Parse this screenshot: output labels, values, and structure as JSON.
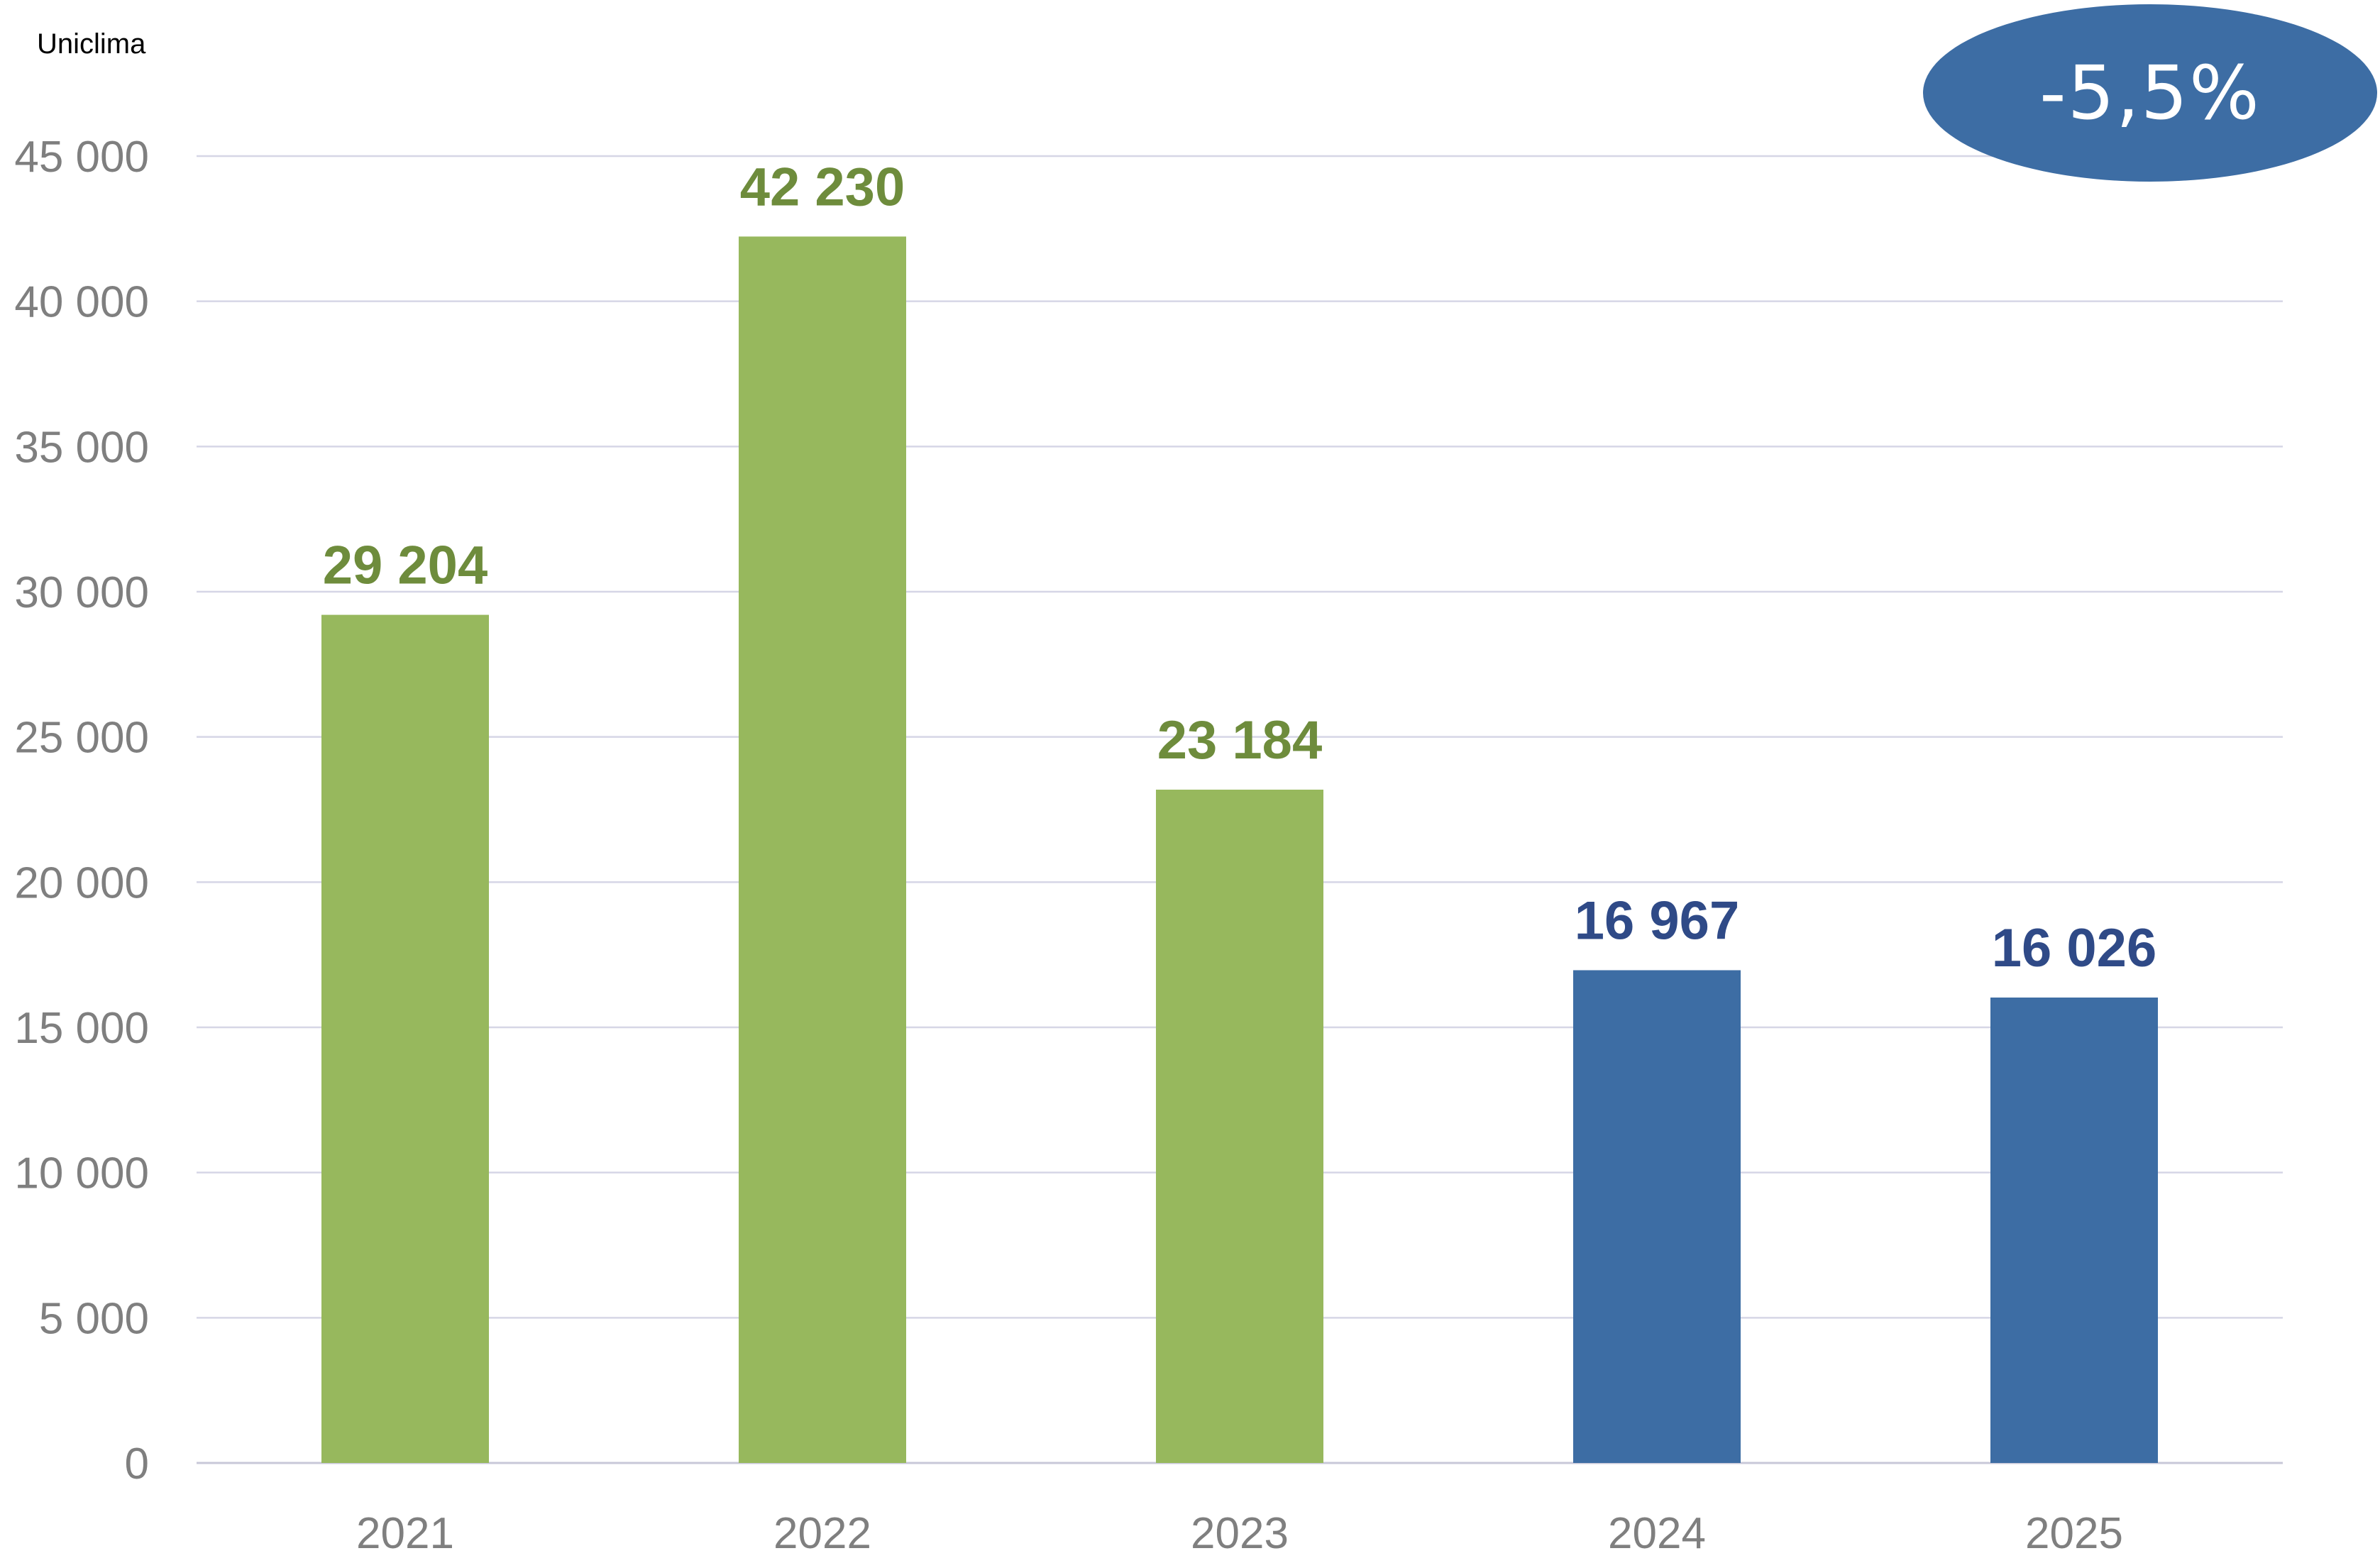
{
  "source_label": "Uniclima",
  "badge": {
    "text": "-5,5%",
    "color": "#3d6da4"
  },
  "chart_data": {
    "type": "bar",
    "title": "",
    "xlabel": "",
    "ylabel": "",
    "categories": [
      "2021",
      "2022",
      "2023",
      "2024",
      "2025"
    ],
    "values": [
      29204,
      42230,
      23184,
      16967,
      16026
    ],
    "value_labels": [
      "29 204",
      "42 230",
      "23 184",
      "16 967",
      "16 026"
    ],
    "bar_colors": [
      "#97b85d",
      "#97b85d",
      "#97b85d",
      "#3d6da4",
      "#3d6da4"
    ],
    "label_colors": [
      "#6e8c3c",
      "#6e8c3c",
      "#6e8c3c",
      "#2f4a87",
      "#2f4a87"
    ],
    "ylim": [
      0,
      45000
    ],
    "yticks": [
      0,
      5000,
      10000,
      15000,
      20000,
      25000,
      30000,
      35000,
      40000,
      45000
    ],
    "ytick_labels": [
      "0",
      "5 000",
      "10 000",
      "15 000",
      "20 000",
      "25 000",
      "30 000",
      "35 000",
      "40 000",
      "45 000"
    ],
    "grid": true,
    "legend": "none"
  }
}
